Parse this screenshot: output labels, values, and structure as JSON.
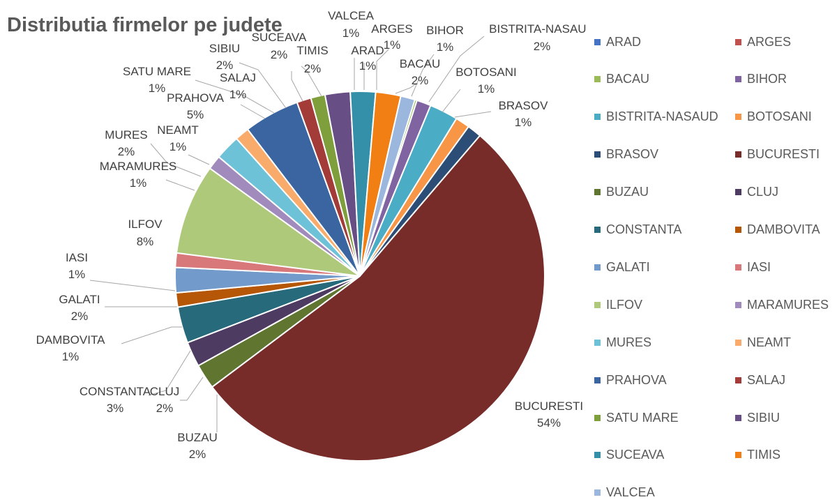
{
  "chart_data": {
    "type": "pie",
    "title": "Distributia firmelor pe judete",
    "legend_position": "right",
    "slices": [
      {
        "label": "ARAD",
        "value": 1,
        "percent_label": "1%",
        "color": "#4472c4"
      },
      {
        "label": "ARGES",
        "value": 1,
        "percent_label": "1%",
        "color": "#c0504d"
      },
      {
        "label": "BACAU",
        "value": 2,
        "percent_label": "2%",
        "color": "#9bbb59"
      },
      {
        "label": "BIHOR",
        "value": 1,
        "percent_label": "1%",
        "color": "#8064a2"
      },
      {
        "label": "BISTRITA-NASAUD",
        "value": 2,
        "percent_label": "2%",
        "color": "#4bacc6"
      },
      {
        "label": "BOTOSANI",
        "value": 1,
        "percent_label": "1%",
        "color": "#f79646"
      },
      {
        "label": "BRASOV",
        "value": 1,
        "percent_label": "1%",
        "color": "#2c4d75"
      },
      {
        "label": "BUCURESTI",
        "value": 54,
        "percent_label": "54%",
        "color": "#772c2a"
      },
      {
        "label": "BUZAU",
        "value": 2,
        "percent_label": "2%",
        "color": "#5f7530"
      },
      {
        "label": "CLUJ",
        "value": 2,
        "percent_label": "2%",
        "color": "#4d3b62"
      },
      {
        "label": "CONSTANTA",
        "value": 3,
        "percent_label": "3%",
        "color": "#276a7c"
      },
      {
        "label": "DAMBOVITA",
        "value": 1,
        "percent_label": "1%",
        "color": "#b65708"
      },
      {
        "label": "GALATI",
        "value": 2,
        "percent_label": "2%",
        "color": "#729aca"
      },
      {
        "label": "IASI",
        "value": 1,
        "percent_label": "1%",
        "color": "#d9787a"
      },
      {
        "label": "ILFOV",
        "value": 8,
        "percent_label": "8%",
        "color": "#afc97a"
      },
      {
        "label": "MARAMURES",
        "value": 1,
        "percent_label": "1%",
        "color": "#a08bbc"
      },
      {
        "label": "MURES",
        "value": 2,
        "percent_label": "2%",
        "color": "#6ec2d8"
      },
      {
        "label": "NEAMT",
        "value": 1,
        "percent_label": "1%",
        "color": "#f9ab6b"
      },
      {
        "label": "PRAHOVA",
        "value": 5,
        "percent_label": "5%",
        "color": "#3a65a0"
      },
      {
        "label": "SALAJ",
        "value": 1,
        "percent_label": "1%",
        "color": "#a33c39"
      },
      {
        "label": "SATU MARE",
        "value": 1,
        "percent_label": "1%",
        "color": "#7f9f3d"
      },
      {
        "label": "SIBIU",
        "value": 2,
        "percent_label": "2%",
        "color": "#674f86"
      },
      {
        "label": "SUCEAVA",
        "value": 2,
        "percent_label": "2%",
        "color": "#348fa8"
      },
      {
        "label": "TIMIS",
        "value": 2,
        "percent_label": "2%",
        "color": "#f27f14"
      },
      {
        "label": "VALCEA",
        "value": 1,
        "percent_label": "1%",
        "color": "#9cb7dd"
      }
    ]
  }
}
